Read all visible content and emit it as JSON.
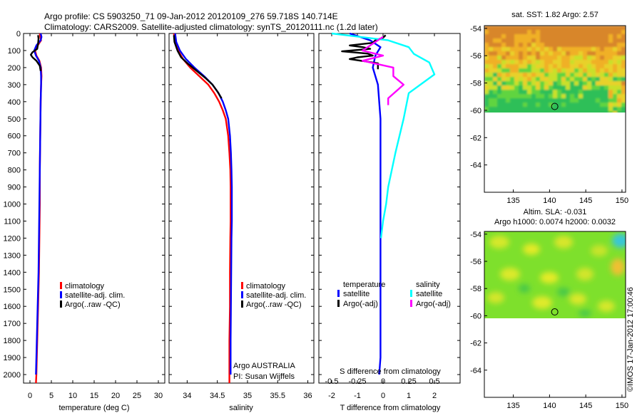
{
  "header": {
    "line1": "Argo profile: CS 5903250_71 09-Jan-2012 20120109_276 59.718S 140.714E",
    "line2": "Climatology: CARS2009. Satellite-adjusted climatology: synTS_20120111.nc (1.2d later)"
  },
  "footer": {
    "credit": "©IMOS 17-Jan-2012 17:00:46",
    "institution": "Argo AUSTRALIA",
    "pi": "PI: Susan Wijffels"
  },
  "colors": {
    "climatology": "#ff0000",
    "satellite": "#0000ff",
    "argo": "#000000",
    "sal_satellite": "#00ffff",
    "sal_argo": "#ff00ff"
  },
  "chart_data": [
    {
      "type": "line",
      "id": "temperature",
      "xlabel": "temperature (deg C)",
      "xlim": [
        -1.5,
        31.5
      ],
      "xticks": [
        0,
        5,
        10,
        15,
        20,
        25,
        30
      ],
      "ylim": [
        2050,
        0
      ],
      "yticks": [
        0,
        100,
        200,
        300,
        400,
        500,
        600,
        700,
        800,
        900,
        1000,
        1100,
        1200,
        1300,
        1400,
        1500,
        1600,
        1700,
        1800,
        1900,
        2000
      ],
      "legend": [
        "climatology",
        "satellite-adj. clim.",
        "Argo(..raw -QC)"
      ],
      "legend_placement": "center",
      "series": [
        {
          "name": "climatology",
          "color": "#ff0000",
          "x": [
            2.3,
            2.4,
            2.6,
            1.8,
            1.2,
            1.5,
            2.2,
            2.6,
            2.7,
            2.6,
            2.5,
            2.4,
            2.3,
            2.3,
            2.2,
            2.1,
            2.0,
            1.9,
            1.8,
            1.7,
            1.6,
            1.5,
            1.4
          ],
          "y": [
            0,
            20,
            40,
            70,
            100,
            130,
            160,
            200,
            250,
            300,
            400,
            600,
            800,
            1000,
            1200,
            1400,
            1500,
            1600,
            1700,
            1800,
            1900,
            2000,
            2050
          ]
        },
        {
          "name": "satellite-adj. clim.",
          "color": "#0000ff",
          "x": [
            2.5,
            2.7,
            2.5,
            1.5,
            1.0,
            1.4,
            2.1,
            2.5,
            2.6,
            2.6,
            2.5,
            2.4,
            2.3,
            2.2,
            2.1,
            2.0,
            1.9,
            1.8,
            1.7,
            1.6,
            1.5,
            1.4
          ],
          "y": [
            0,
            20,
            40,
            70,
            100,
            130,
            160,
            200,
            250,
            300,
            400,
            600,
            800,
            1000,
            1200,
            1400,
            1500,
            1600,
            1700,
            1800,
            1900,
            2000
          ]
        },
        {
          "name": "Argo(..raw -QC)",
          "color": "#000000",
          "x": [
            1.9,
            2.0,
            1.9,
            1.7,
            0.6,
            0.2,
            0.6,
            1.5,
            2.3,
            2.5
          ],
          "y": [
            10,
            30,
            60,
            90,
            110,
            125,
            140,
            160,
            190,
            220
          ]
        }
      ]
    },
    {
      "type": "line",
      "id": "salinity",
      "xlabel": "salinity",
      "xlim": [
        33.7,
        36.1
      ],
      "xticks": [
        34,
        34.5,
        35,
        35.5,
        36
      ],
      "ylim": [
        2050,
        0
      ],
      "legend": [
        "climatology",
        "satellite-adj. clim.",
        "Argo(..raw -QC)"
      ],
      "legend_placement": "center",
      "series": [
        {
          "name": "climatology",
          "color": "#ff0000",
          "x": [
            33.78,
            33.8,
            33.85,
            33.93,
            34.05,
            34.2,
            34.35,
            34.45,
            34.53,
            34.59,
            34.64,
            34.68,
            34.7,
            34.715,
            34.72,
            34.72,
            34.72,
            34.715,
            34.71,
            34.71,
            34.7,
            34.7,
            34.7
          ],
          "y": [
            0,
            50,
            100,
            150,
            200,
            250,
            300,
            350,
            400,
            450,
            500,
            600,
            700,
            800,
            900,
            1000,
            1100,
            1200,
            1400,
            1600,
            1800,
            2000,
            2050
          ]
        },
        {
          "name": "satellite-adj. clim.",
          "color": "#0000ff",
          "x": [
            33.8,
            33.82,
            33.88,
            33.98,
            34.12,
            34.28,
            34.42,
            34.52,
            34.59,
            34.64,
            34.68,
            34.71,
            34.725,
            34.735,
            34.74,
            34.74,
            34.74,
            34.735,
            34.73,
            34.725,
            34.72,
            34.72
          ],
          "y": [
            0,
            50,
            100,
            150,
            200,
            250,
            300,
            350,
            400,
            450,
            500,
            600,
            700,
            800,
            900,
            1000,
            1100,
            1200,
            1400,
            1600,
            1800,
            2000
          ]
        },
        {
          "name": "Argo(..raw -QC)",
          "color": "#000000",
          "x": [
            33.78,
            33.79,
            33.84,
            33.9,
            34.02,
            34.16,
            34.3,
            34.42,
            34.5,
            34.57
          ],
          "y": [
            10,
            50,
            100,
            140,
            180,
            220,
            260,
            300,
            340,
            380
          ]
        }
      ]
    },
    {
      "type": "line",
      "id": "difference",
      "xlabel": "T difference from climatology",
      "x2label": "S difference from climatology",
      "xlim": [
        -2.5,
        3
      ],
      "xticks": [
        -2,
        -1,
        0,
        1,
        2
      ],
      "x2ticks": [
        -0.5,
        -0.25,
        0,
        0.25,
        0.5
      ],
      "ylim": [
        2050,
        0
      ],
      "legend_groups": [
        {
          "title": "temperature",
          "items": [
            "satellite",
            "Argo(-adj)"
          ]
        },
        {
          "title": "salinity",
          "items": [
            "satellite",
            "Argo(-adj)"
          ]
        }
      ],
      "legend_placement": "center",
      "series": [
        {
          "name": "temperature satellite",
          "color": "#0000ff",
          "x": [
            -1.3,
            -0.5,
            -0.1,
            -0.3,
            -0.4,
            -0.2,
            -0.1,
            -0.1,
            -0.1,
            -0.1,
            -0.1,
            -0.1,
            -0.15
          ],
          "y": [
            0,
            40,
            80,
            130,
            200,
            300,
            500,
            800,
            1000,
            1400,
            1700,
            1900,
            2000
          ]
        },
        {
          "name": "temperature Argo(-adj)",
          "color": "#000000",
          "x": [
            0.1,
            0.0,
            -0.3,
            -0.4,
            -1.3,
            -0.8,
            -0.5,
            -1.6,
            -0.6,
            -0.4,
            -1.0,
            -1.3,
            -0.2,
            -0.2
          ],
          "y": [
            10,
            25,
            40,
            55,
            70,
            80,
            90,
            105,
            118,
            130,
            140,
            150,
            175,
            210
          ]
        },
        {
          "name": "salinity satellite",
          "color": "#00ffff",
          "x": [
            -0.5,
            0.05,
            0.25,
            0.3,
            0.45,
            0.5,
            0.25,
            0.2,
            0.12,
            0.05,
            0.03,
            0.0,
            -0.02
          ],
          "y": [
            0,
            40,
            80,
            120,
            170,
            240,
            350,
            500,
            700,
            900,
            1000,
            1100,
            1200
          ]
        },
        {
          "name": "salinity Argo(-adj)",
          "color": "#ff00ff",
          "x": [
            0.0,
            -0.1,
            -0.2,
            0.0,
            -0.2,
            0.1,
            0.1,
            0.2,
            0.05,
            0.05
          ],
          "y": [
            20,
            60,
            100,
            130,
            160,
            200,
            250,
            300,
            380,
            420
          ]
        }
      ]
    },
    {
      "type": "heatmap",
      "id": "sst-map",
      "title": "sat. SST: 1.82 Argo: 2.57",
      "xticks": [
        135,
        140,
        145,
        150
      ],
      "yticks": [
        -54,
        -56,
        -58,
        -60,
        -62,
        -64
      ],
      "xlim": [
        131,
        150.5
      ],
      "ylim": [
        -66,
        -53.8
      ],
      "data_lat_range": [
        -60.2,
        -53.8
      ],
      "marker": {
        "lon": 140.714,
        "lat": -59.718
      }
    },
    {
      "type": "heatmap",
      "id": "sla-map",
      "title": "Altim. SLA: -0.031",
      "subtitle": "Argo h1000: 0.0074 h2000: 0.0032",
      "xticks": [
        135,
        140,
        145,
        150
      ],
      "yticks": [
        -54,
        -56,
        -58,
        -60,
        -62,
        -64
      ],
      "xlim": [
        131,
        150.5
      ],
      "ylim": [
        -66,
        -53.8
      ],
      "data_lat_range": [
        -60.2,
        -53.8
      ],
      "marker": {
        "lon": 140.714,
        "lat": -59.718
      }
    }
  ]
}
